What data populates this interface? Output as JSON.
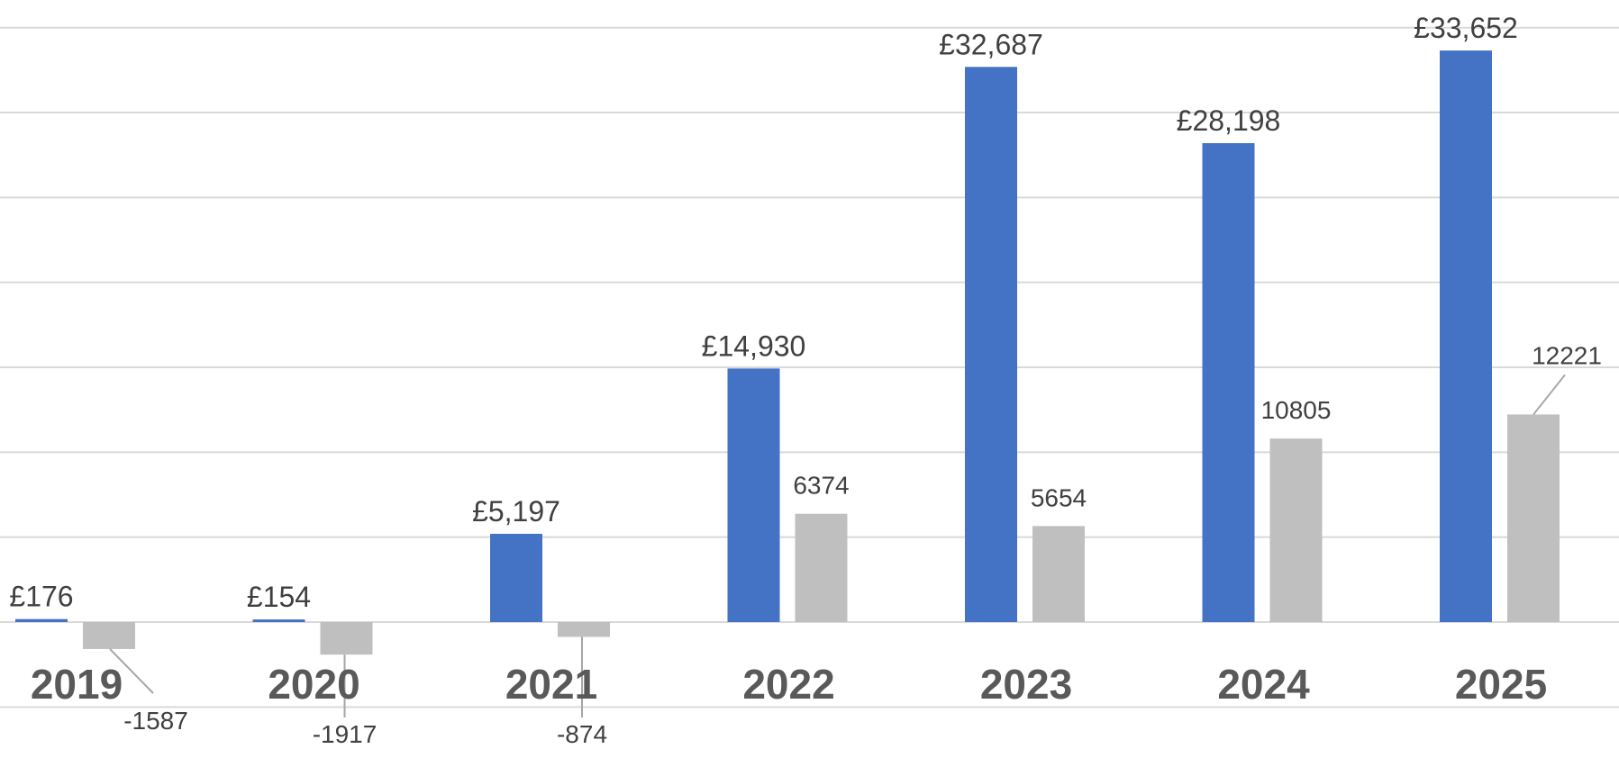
{
  "chart_data": {
    "type": "bar",
    "categories": [
      "2019",
      "2020",
      "2021",
      "2022",
      "2023",
      "2024",
      "2025"
    ],
    "series": [
      {
        "values": [
          176,
          154,
          5197,
          14930,
          32687,
          28198,
          33652
        ],
        "labels": [
          "£176",
          "£154",
          "£5,197",
          "£14,930",
          "£32,687",
          "£28,198",
          "£33,652"
        ],
        "color": "#4472C4"
      },
      {
        "values": [
          -1587,
          -1917,
          -874,
          6374,
          5654,
          10805,
          12221
        ],
        "labels": [
          "-1587",
          "-1917",
          "-874",
          "6374",
          "5654",
          "10805",
          "12221"
        ],
        "color": "#BFBFBF"
      }
    ],
    "ylim": [
      -5000,
      35000
    ],
    "gridline_step": 5000,
    "grid": true,
    "legend": "none",
    "colors": {
      "gridline": "#D9D9D9",
      "label_text": "#404040",
      "category_text": "#595959",
      "leader_line": "#A6A6A6"
    }
  }
}
